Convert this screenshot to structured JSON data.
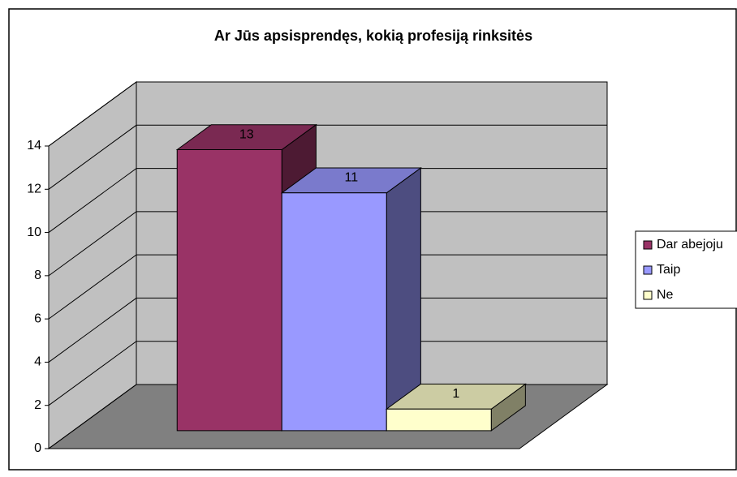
{
  "chart_data": {
    "type": "bar",
    "title": "Ar Jūs apsisprendęs, kokią profesiją rinksitės",
    "categories": [
      null
    ],
    "series": [
      {
        "name": "Dar abejoju",
        "color": "#993366",
        "values": [
          13
        ]
      },
      {
        "name": "Taip",
        "color": "#9999ff",
        "values": [
          11
        ]
      },
      {
        "name": "Ne",
        "color": "#ffffcc",
        "values": [
          1
        ]
      }
    ],
    "ylim": [
      0,
      14
    ],
    "yticks": [
      0,
      2,
      4,
      6,
      8,
      10,
      12,
      14
    ],
    "grid": true,
    "legend": "right",
    "data_labels": true
  }
}
